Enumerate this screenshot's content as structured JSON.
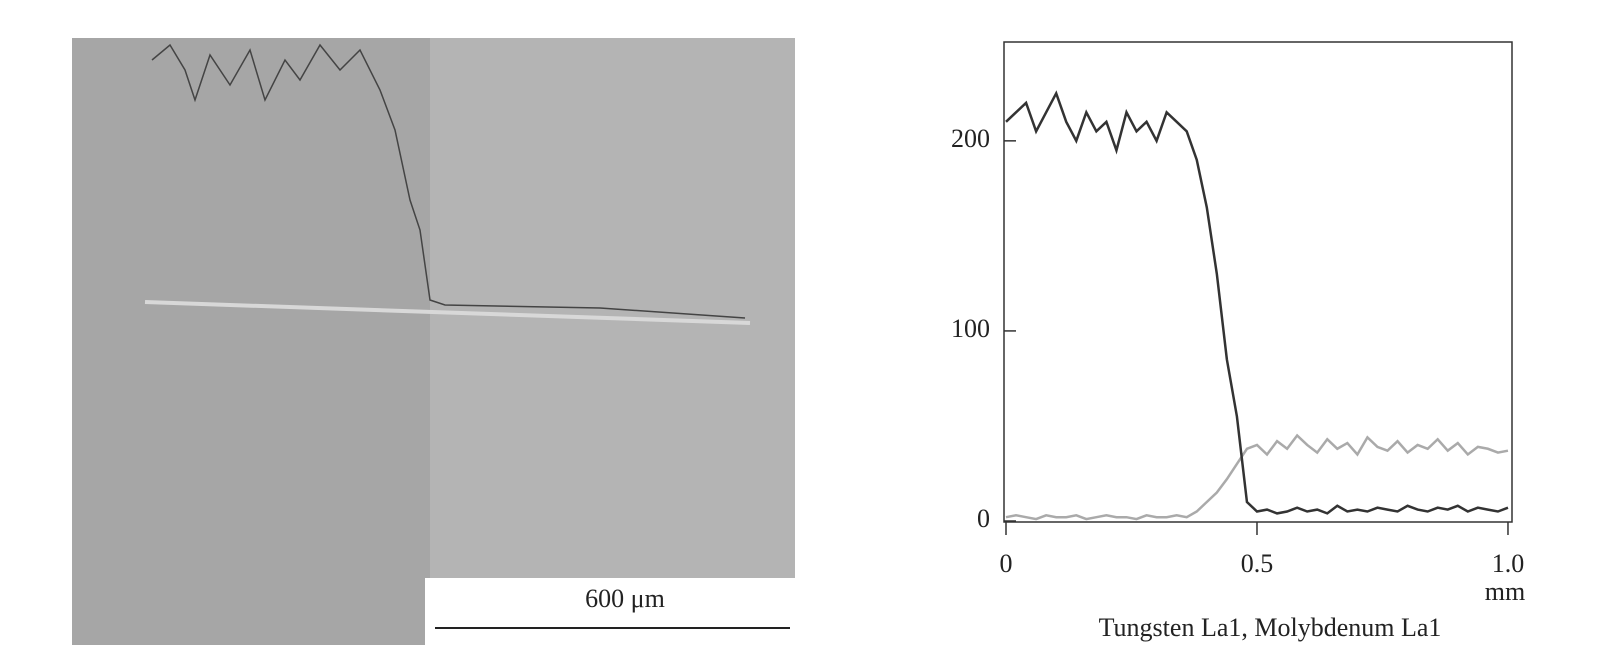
{
  "scale_bar": "600 μm",
  "chart_data": {
    "type": "line",
    "x_label": "mm",
    "caption": "Tungsten La1, Molybdenum La1",
    "x": [
      0,
      0.02,
      0.04,
      0.06,
      0.08,
      0.1,
      0.12,
      0.14,
      0.16,
      0.18,
      0.2,
      0.22,
      0.24,
      0.26,
      0.28,
      0.3,
      0.32,
      0.34,
      0.36,
      0.38,
      0.4,
      0.42,
      0.44,
      0.46,
      0.48,
      0.5,
      0.52,
      0.54,
      0.56,
      0.58,
      0.6,
      0.62,
      0.64,
      0.66,
      0.68,
      0.7,
      0.72,
      0.74,
      0.76,
      0.78,
      0.8,
      0.82,
      0.84,
      0.86,
      0.88,
      0.9,
      0.92,
      0.94,
      0.96,
      0.98,
      1.0
    ],
    "series": [
      {
        "color": "#333333",
        "values": [
          210,
          215,
          220,
          205,
          215,
          225,
          210,
          200,
          215,
          205,
          210,
          195,
          215,
          205,
          210,
          200,
          215,
          210,
          205,
          190,
          165,
          130,
          85,
          55,
          10,
          5,
          6,
          4,
          5,
          7,
          5,
          6,
          4,
          8,
          5,
          6,
          5,
          7,
          6,
          5,
          8,
          6,
          5,
          7,
          6,
          8,
          5,
          7,
          6,
          5,
          7
        ]
      },
      {
        "color": "#aaaaaa",
        "values": [
          2,
          3,
          2,
          1,
          3,
          2,
          2,
          3,
          1,
          2,
          3,
          2,
          2,
          1,
          3,
          2,
          2,
          3,
          2,
          5,
          10,
          15,
          22,
          30,
          38,
          40,
          35,
          42,
          38,
          45,
          40,
          36,
          43,
          38,
          41,
          35,
          44,
          39,
          37,
          42,
          36,
          40,
          38,
          43,
          37,
          41,
          35,
          39,
          38,
          36,
          37
        ]
      }
    ],
    "xlim": [
      0,
      1.01
    ],
    "ylim": [
      0,
      252
    ],
    "xticks": [
      0,
      0.5,
      {
        "value": 1,
        "label": "1.0"
      }
    ],
    "yticks": [
      0,
      100,
      200
    ]
  }
}
